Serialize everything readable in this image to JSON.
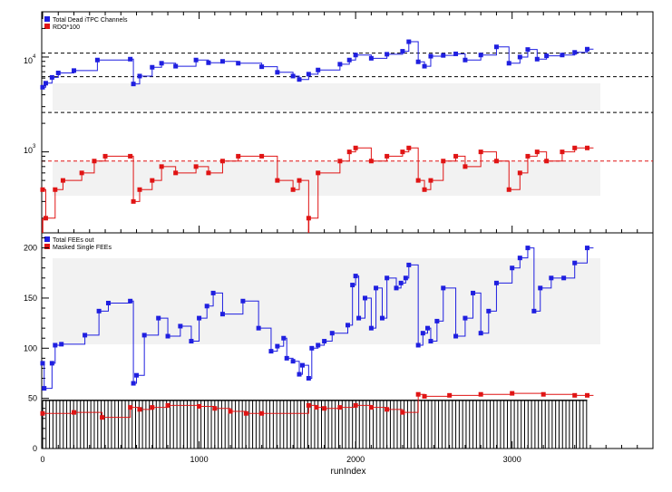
{
  "figure": {
    "xlabel": "runIndex",
    "colors": {
      "blue": "#1f1fe0",
      "red": "#e01414",
      "black": "#000000",
      "band": "#f2f2f2"
    }
  },
  "chart_data": [
    {
      "type": "line",
      "panel": "top",
      "yscale": "log",
      "xlim": [
        0,
        3900
      ],
      "ylim": [
        140,
        30000
      ],
      "ytick_labels": [
        {
          "value": 1000,
          "base": "10",
          "exp": "3"
        },
        {
          "value": 10000,
          "base": "10",
          "exp": "4"
        }
      ],
      "legend": [
        "Total Dead iTPC Channels",
        "RDO*100"
      ],
      "legend_position": "top-left",
      "ref_lines": [
        {
          "value": 11000,
          "color": "black"
        },
        {
          "value": 6200,
          "color": "black"
        },
        {
          "value": 2600,
          "color": "black"
        },
        {
          "value": 800,
          "color": "red"
        }
      ],
      "series": [
        {
          "name": "Total Dead iTPC Channels",
          "color": "blue",
          "x": [
            0,
            20,
            60,
            100,
            200,
            350,
            560,
            580,
            620,
            700,
            760,
            850,
            980,
            1060,
            1150,
            1250,
            1400,
            1500,
            1600,
            1640,
            1700,
            1760,
            1900,
            1960,
            2000,
            2100,
            2200,
            2300,
            2340,
            2400,
            2440,
            2480,
            2560,
            2640,
            2700,
            2800,
            2900,
            2980,
            3050,
            3100,
            3160,
            3220,
            3320,
            3400,
            3480
          ],
          "y": [
            4800,
            5300,
            6100,
            6800,
            7200,
            9300,
            9500,
            5200,
            6300,
            7800,
            8600,
            8000,
            9300,
            8700,
            9000,
            8600,
            7900,
            6900,
            6300,
            5800,
            6600,
            7300,
            8400,
            9300,
            10500,
            9700,
            10700,
            11500,
            14500,
            8900,
            8000,
            10200,
            10400,
            10800,
            9300,
            10500,
            12800,
            8600,
            10000,
            12000,
            9500,
            10300,
            10500,
            11200,
            12100
          ]
        },
        {
          "name": "RDO*100",
          "color": "red",
          "x": [
            0,
            20,
            80,
            130,
            250,
            330,
            400,
            560,
            580,
            620,
            700,
            760,
            850,
            980,
            1060,
            1150,
            1250,
            1400,
            1500,
            1600,
            1640,
            1700,
            1760,
            1900,
            1960,
            2000,
            2100,
            2200,
            2300,
            2340,
            2400,
            2440,
            2480,
            2560,
            2640,
            2700,
            2800,
            2900,
            2980,
            3050,
            3100,
            3160,
            3220,
            3320,
            3400,
            3480
          ],
          "y": [
            400,
            200,
            400,
            500,
            600,
            800,
            900,
            900,
            300,
            400,
            500,
            700,
            600,
            700,
            600,
            800,
            900,
            900,
            500,
            400,
            500,
            200,
            600,
            800,
            1000,
            1100,
            800,
            900,
            1000,
            1100,
            500,
            400,
            500,
            800,
            900,
            700,
            1000,
            800,
            400,
            600,
            900,
            1000,
            800,
            1000,
            1100,
            1100
          ]
        }
      ]
    },
    {
      "type": "line",
      "panel": "bottom",
      "xlim": [
        0,
        3900
      ],
      "ylim": [
        0,
        215
      ],
      "yticks": [
        0,
        50,
        100,
        150,
        200
      ],
      "xticks": [
        0,
        1000,
        2000,
        3000
      ],
      "legend": [
        "Total FEEs out",
        "Masked Single FEEs"
      ],
      "legend_position": "top-left",
      "series": [
        {
          "name": "Total FEEs out",
          "color": "blue",
          "x": [
            0,
            10,
            60,
            80,
            120,
            270,
            360,
            420,
            560,
            580,
            600,
            650,
            740,
            800,
            880,
            950,
            1000,
            1050,
            1090,
            1150,
            1280,
            1380,
            1460,
            1500,
            1540,
            1560,
            1600,
            1640,
            1660,
            1700,
            1720,
            1760,
            1800,
            1850,
            1950,
            1980,
            2000,
            2020,
            2060,
            2100,
            2130,
            2170,
            2200,
            2260,
            2290,
            2320,
            2340,
            2400,
            2430,
            2460,
            2480,
            2520,
            2560,
            2640,
            2700,
            2750,
            2800,
            2850,
            2900,
            3000,
            3050,
            3100,
            3140,
            3180,
            3250,
            3330,
            3400,
            3480
          ],
          "y": [
            85,
            60,
            85,
            103,
            104,
            113,
            137,
            145,
            147,
            65,
            73,
            113,
            130,
            112,
            122,
            107,
            130,
            142,
            155,
            134,
            147,
            120,
            97,
            102,
            110,
            90,
            87,
            74,
            83,
            70,
            100,
            103,
            107,
            115,
            123,
            163,
            172,
            130,
            150,
            120,
            160,
            130,
            170,
            160,
            165,
            170,
            183,
            103,
            115,
            120,
            107,
            127,
            160,
            112,
            130,
            155,
            115,
            137,
            165,
            180,
            190,
            200,
            137,
            160,
            170,
            170,
            185,
            200
          ]
        },
        {
          "name": "Masked Single FEEs",
          "color": "red",
          "x": [
            0,
            200,
            380,
            560,
            620,
            700,
            800,
            1000,
            1100,
            1200,
            1300,
            1400,
            1700,
            1750,
            1800,
            1900,
            2000,
            2100,
            2200,
            2300,
            2400,
            2440,
            2600,
            2800,
            3000,
            3200,
            3400,
            3480
          ],
          "y": [
            35,
            36,
            31,
            41,
            39,
            41,
            43,
            42,
            40,
            37,
            35,
            35,
            43,
            41,
            40,
            41,
            43,
            41,
            39,
            36,
            54,
            52,
            53,
            54,
            55,
            54,
            53,
            53
          ]
        },
        {
          "name": "",
          "color": "black",
          "x": [
            0,
            3480
          ],
          "y": [
            48,
            48
          ]
        }
      ]
    }
  ]
}
